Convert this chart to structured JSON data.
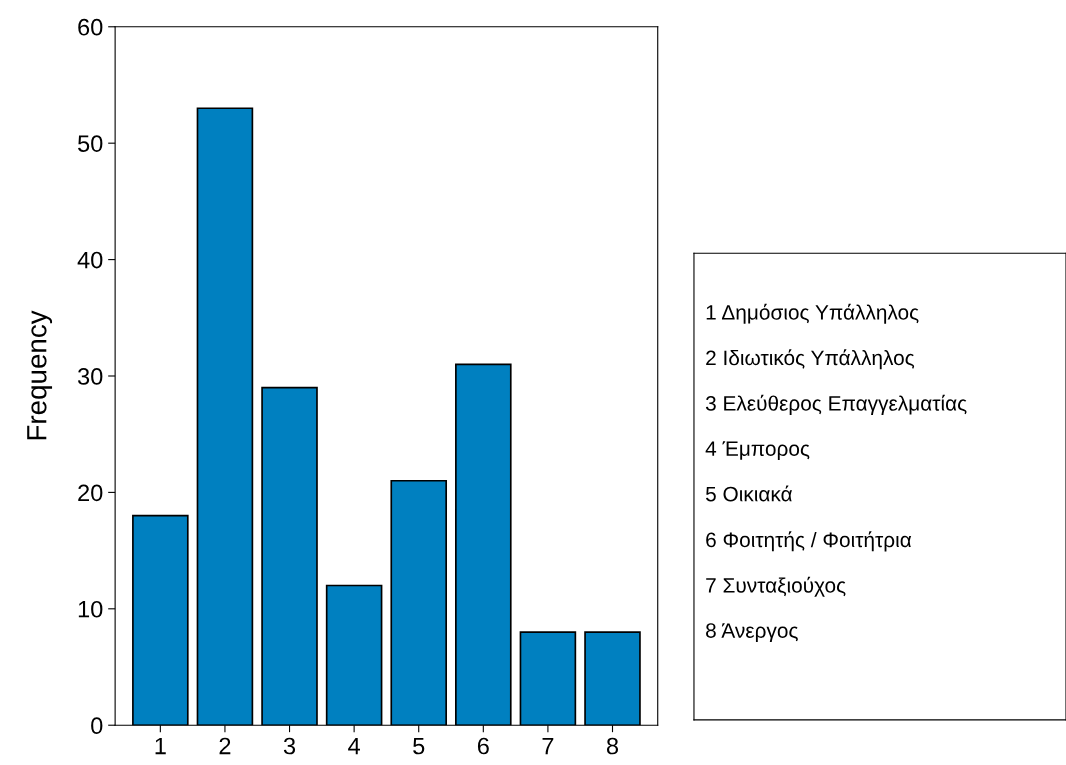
{
  "chart_data": {
    "type": "bar",
    "ylabel": "Frequency",
    "categories": [
      "1",
      "2",
      "3",
      "4",
      "5",
      "6",
      "7",
      "8"
    ],
    "values": [
      18,
      53,
      29,
      12,
      21,
      31,
      8,
      8
    ],
    "color": "#0080c0",
    "ylim": [
      0,
      60
    ],
    "yticks": [
      0,
      10,
      20,
      30,
      40,
      50,
      60
    ],
    "grid": false,
    "annotations": [
      "1 Δημόσιος Υπάλληλος",
      "2 Ιδιωτικός Υπάλληλος",
      "3 Ελεύθερος Επαγγελματίας",
      "4 Έμπορος",
      "5 Οικιακά",
      "6 Φοιτητής / Φοιτήτρια",
      "7 Συνταξιούχος",
      "8 Άνεργος"
    ]
  }
}
